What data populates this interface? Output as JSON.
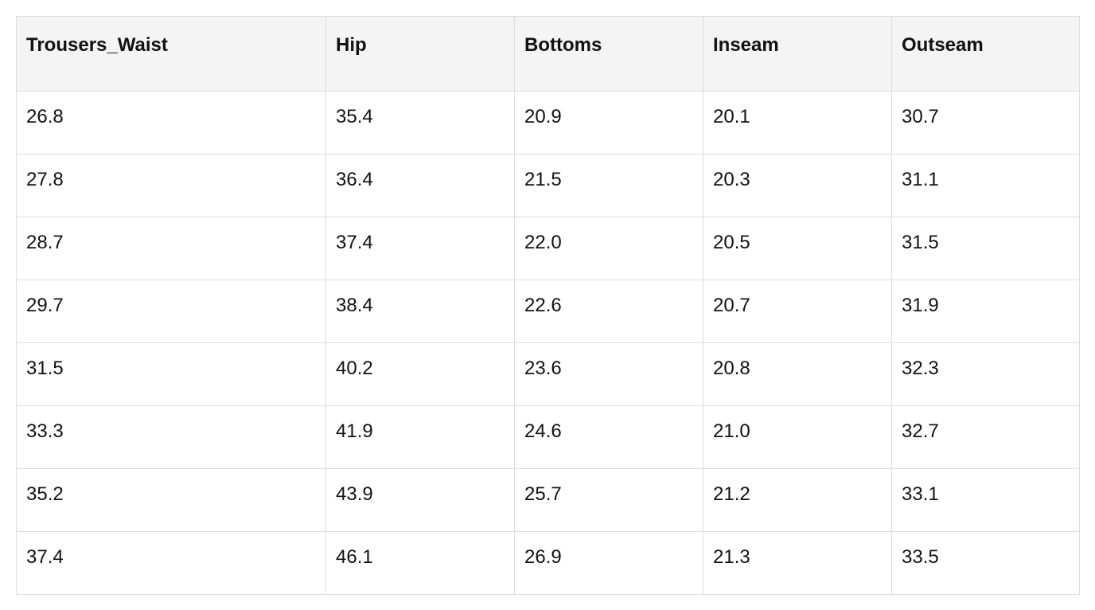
{
  "table": {
    "header": [
      "Trousers_Waist",
      "Hip",
      "Bottoms",
      "Inseam",
      "Outseam"
    ],
    "rows": [
      [
        "26.8",
        "35.4",
        "20.9",
        "20.1",
        "30.7"
      ],
      [
        "27.8",
        "36.4",
        "21.5",
        "20.3",
        "31.1"
      ],
      [
        "28.7",
        "37.4",
        "22.0",
        "20.5",
        "31.5"
      ],
      [
        "29.7",
        "38.4",
        "22.6",
        "20.7",
        "31.9"
      ],
      [
        "31.5",
        "40.2",
        "23.6",
        "20.8",
        "32.3"
      ],
      [
        "33.3",
        "41.9",
        "24.6",
        "21.0",
        "32.7"
      ],
      [
        "35.2",
        "43.9",
        "25.7",
        "21.2",
        "33.1"
      ],
      [
        "37.4",
        "46.1",
        "26.9",
        "21.3",
        "33.5"
      ]
    ]
  }
}
